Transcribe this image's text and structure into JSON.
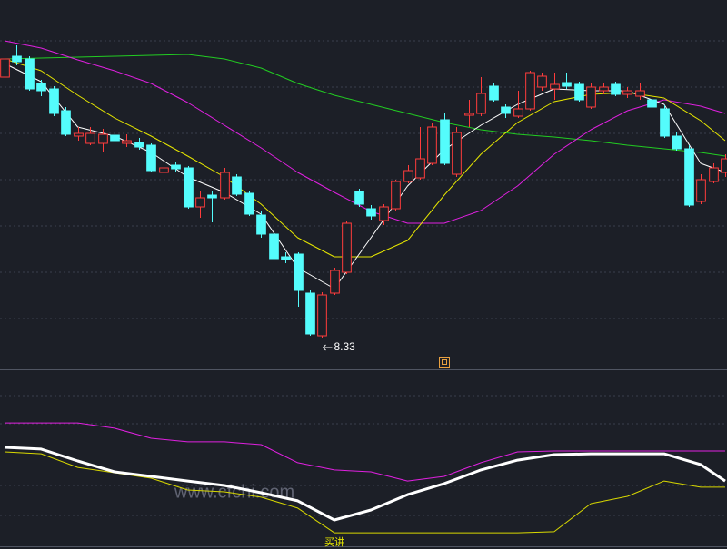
{
  "chart_data": [
    {
      "type": "candlestick",
      "up_color": "#ff3c3c",
      "down_color": "#54fcfc",
      "xlim": [
        0,
        59
      ],
      "ylim": [
        8.0,
        12.05
      ],
      "open": [
        11.2,
        11.43,
        11.4,
        11.13,
        11.07,
        10.83,
        10.55,
        10.47,
        10.47,
        10.56,
        10.47,
        10.48,
        10.45,
        10.15,
        10.23,
        10.2,
        9.77,
        9.9,
        9.87,
        10.1,
        9.92,
        9.68,
        9.47,
        9.22,
        9.25,
        8.82,
        8.35,
        8.82,
        9.05,
        9.94,
        9.75,
        9.62,
        9.75,
        10.05,
        10.09,
        10.25,
        10.73,
        10.13,
        10.78,
        10.8,
        11.1,
        10.87,
        10.77,
        10.85,
        11.09,
        11.07,
        11.14,
        11.12,
        10.87,
        11.05,
        11.12,
        11.01,
        10.99,
        10.95,
        10.85,
        10.55,
        10.41,
        9.83,
        10.05,
        10.15
      ],
      "high": [
        11.47,
        11.55,
        11.43,
        11.17,
        11.1,
        10.87,
        10.65,
        10.65,
        10.63,
        10.6,
        10.57,
        10.53,
        10.47,
        10.25,
        10.27,
        10.22,
        9.95,
        9.95,
        10.2,
        10.13,
        9.95,
        9.73,
        9.5,
        9.27,
        9.27,
        8.85,
        8.83,
        9.1,
        9.62,
        9.97,
        9.79,
        9.8,
        10.07,
        10.23,
        10.65,
        10.7,
        10.8,
        10.65,
        10.95,
        11.2,
        11.13,
        10.9,
        11.05,
        11.27,
        11.25,
        11.25,
        11.25,
        11.15,
        11.13,
        11.13,
        11.15,
        11.09,
        11.13,
        11.05,
        10.89,
        10.59,
        10.45,
        10.13,
        10.25,
        10.35
      ],
      "low": [
        11.17,
        11.33,
        11.05,
        10.99,
        10.77,
        10.55,
        10.5,
        10.45,
        10.37,
        10.47,
        10.43,
        10.4,
        10.15,
        9.93,
        10.15,
        9.75,
        9.65,
        9.6,
        9.85,
        9.89,
        9.67,
        9.43,
        9.17,
        9.15,
        8.67,
        8.35,
        8.33,
        8.8,
        9.03,
        9.77,
        9.63,
        9.57,
        9.73,
        10.03,
        10.07,
        10.23,
        10.23,
        10.1,
        10.65,
        10.77,
        10.93,
        10.75,
        10.75,
        10.83,
        11.05,
        10.95,
        11.07,
        10.93,
        10.85,
        11.01,
        10.99,
        10.97,
        10.95,
        10.83,
        10.53,
        10.39,
        9.77,
        9.8,
        10.03,
        10.1
      ],
      "close": [
        11.4,
        11.37,
        11.07,
        11.05,
        10.8,
        10.57,
        10.58,
        10.58,
        10.57,
        10.5,
        10.5,
        10.43,
        10.17,
        10.2,
        10.19,
        9.77,
        9.87,
        9.87,
        10.15,
        9.91,
        9.69,
        9.47,
        9.2,
        9.19,
        8.85,
        8.37,
        8.8,
        9.07,
        9.59,
        9.8,
        9.67,
        9.77,
        10.05,
        10.17,
        10.3,
        10.65,
        10.25,
        10.59,
        10.8,
        11.02,
        10.95,
        10.8,
        10.85,
        11.25,
        11.21,
        11.12,
        11.1,
        10.95,
        11.09,
        11.09,
        11.01,
        11.05,
        11.05,
        10.87,
        10.55,
        10.41,
        9.79,
        10.07,
        10.2,
        10.3
      ],
      "lines": {
        "x": [
          0,
          3,
          6,
          9,
          12,
          15,
          18,
          21,
          24,
          27,
          30,
          33,
          36,
          39,
          42,
          45,
          48,
          51,
          54,
          57,
          59
        ],
        "series": [
          {
            "color": "#22cc22",
            "values": [
              11.4,
              11.41,
              11.42,
              11.43,
              11.44,
              11.45,
              11.4,
              11.3,
              11.13,
              11.0,
              10.9,
              10.8,
              10.7,
              10.62,
              10.57,
              10.54,
              10.5,
              10.45,
              10.41,
              10.37,
              10.33
            ]
          },
          {
            "color": "#e020e0",
            "values": [
              11.6,
              11.52,
              11.39,
              11.27,
              11.13,
              10.92,
              10.67,
              10.42,
              10.15,
              9.93,
              9.72,
              9.59,
              9.59,
              9.73,
              10.0,
              10.35,
              10.62,
              10.83,
              10.95,
              10.88,
              10.8
            ]
          },
          {
            "color": "#e6e600",
            "values": [
              11.4,
              11.27,
              11.0,
              10.75,
              10.55,
              10.33,
              10.1,
              9.8,
              9.43,
              9.22,
              9.22,
              9.4,
              9.9,
              10.35,
              10.7,
              10.93,
              11.01,
              11.03,
              10.97,
              10.72,
              10.5
            ]
          },
          {
            "color": "#ffffff",
            "values": [
              11.35,
              11.15,
              10.65,
              10.55,
              10.37,
              10.1,
              9.93,
              9.69,
              9.1,
              8.87,
              9.43,
              10.0,
              10.4,
              10.67,
              10.9,
              11.07,
              11.05,
              11.05,
              10.9,
              10.25,
              10.15
            ]
          }
        ]
      }
    },
    {
      "type": "line",
      "xlim": [
        0,
        59
      ],
      "ylim": [
        0,
        100
      ],
      "x": [
        0,
        3,
        6,
        9,
        12,
        15,
        18,
        21,
        24,
        27,
        30,
        33,
        36,
        39,
        42,
        45,
        48,
        51,
        54,
        57,
        59
      ],
      "series": [
        {
          "color": "#e020e0",
          "width": 1,
          "values": [
            70.5,
            70.5,
            70.5,
            67.4,
            61.6,
            59.5,
            59.5,
            57.9,
            47.4,
            43.2,
            42.1,
            36.8,
            39.5,
            47.4,
            53.7,
            54.2,
            54.2,
            54.2,
            54.2,
            54.2,
            54.2
          ]
        },
        {
          "color": "#d8d800",
          "width": 1,
          "values": [
            53.7,
            52.6,
            44.7,
            41.6,
            38.4,
            31.6,
            30.5,
            27.4,
            21.1,
            6.8,
            6.8,
            6.8,
            6.8,
            6.8,
            6.8,
            7.4,
            23.7,
            27.9,
            36.8,
            33.2,
            33.2
          ]
        },
        {
          "color": "#ffffff",
          "width": 3,
          "values": [
            56.3,
            55.3,
            48.4,
            42.1,
            39.5,
            36.8,
            34.2,
            30.0,
            25.3,
            14.2,
            20.0,
            28.9,
            35.3,
            43.2,
            48.9,
            52.1,
            52.6,
            52.6,
            52.6,
            46.3,
            36.8
          ]
        }
      ],
      "signal_label": "买讲",
      "watermark": "www.cfchi.com"
    }
  ]
}
